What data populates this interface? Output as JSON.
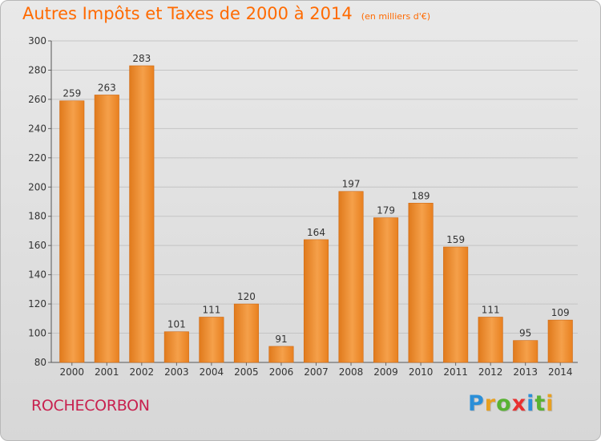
{
  "chart_data": {
    "type": "bar",
    "title": "Autres Impôts et Taxes de 2000 à 2014",
    "unit_label": "(en milliers d'€)",
    "categories": [
      "2000",
      "2001",
      "2002",
      "2003",
      "2004",
      "2005",
      "2006",
      "2007",
      "2008",
      "2009",
      "2010",
      "2011",
      "2012",
      "2013",
      "2014"
    ],
    "values": [
      259,
      263,
      283,
      101,
      111,
      120,
      91,
      164,
      197,
      179,
      189,
      159,
      111,
      95,
      109
    ],
    "data_labels": [
      "259",
      "263",
      "283",
      "101",
      "111",
      "120",
      "91",
      "164",
      "197",
      "179",
      "189",
      "159",
      "111",
      "95",
      "109"
    ],
    "yticks": [
      "80",
      "100",
      "120",
      "140",
      "160",
      "180",
      "200",
      "220",
      "240",
      "260",
      "280",
      "300"
    ],
    "ylim": [
      80,
      300
    ],
    "grid": true,
    "bar_color": "#f0902c",
    "title_color": "#ff6a00"
  },
  "footer": {
    "place": "ROCHECORBON",
    "place_color": "#c8214f",
    "logo_letters": [
      "P",
      "r",
      "o",
      "x",
      "i",
      "t",
      "i"
    ],
    "logo_colors": [
      "#2b8fd8",
      "#e8a020",
      "#58b232",
      "#e83030",
      "#2b8fd8",
      "#58b232",
      "#e8a020"
    ]
  }
}
